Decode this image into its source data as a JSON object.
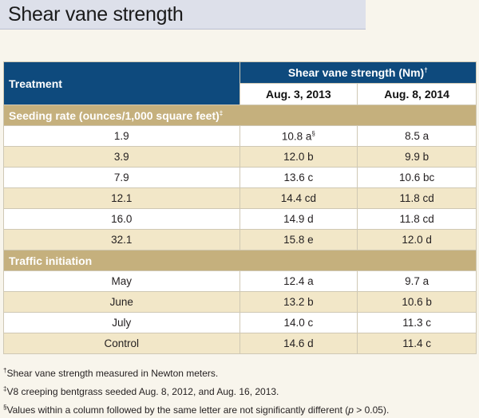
{
  "title": "Shear vane strength",
  "table": {
    "treatment_header": "Treatment",
    "group_header": "Shear vane strength (Nm)",
    "group_header_mark": "†",
    "columns": [
      "Aug. 3, 2013",
      "Aug. 8, 2014"
    ],
    "sections": [
      {
        "label": "Seeding rate (ounces/1,000 square feet)",
        "label_mark": "‡",
        "rows": [
          {
            "treatment": "1.9",
            "v2013": "10.8 a",
            "v2013_mark": "§",
            "v2014": "8.5 a"
          },
          {
            "treatment": "3.9",
            "v2013": "12.0 b",
            "v2014": "9.9 b"
          },
          {
            "treatment": "7.9",
            "v2013": "13.6 c",
            "v2014": "10.6 bc"
          },
          {
            "treatment": "12.1",
            "v2013": "14.4 cd",
            "v2014": "11.8 cd"
          },
          {
            "treatment": "16.0",
            "v2013": "14.9 d",
            "v2014": "11.8 cd"
          },
          {
            "treatment": "32.1",
            "v2013": "15.8 e",
            "v2014": "12.0 d"
          }
        ]
      },
      {
        "label": "Traffic initiation",
        "rows": [
          {
            "treatment": "May",
            "v2013": "12.4 a",
            "v2014": "9.7 a"
          },
          {
            "treatment": "June",
            "v2013": "13.2 b",
            "v2014": "10.6 b"
          },
          {
            "treatment": "July",
            "v2013": "14.0 c",
            "v2014": "11.3 c"
          },
          {
            "treatment": "Control",
            "v2013": "14.6 d",
            "v2014": "11.4 c"
          }
        ]
      }
    ]
  },
  "footnotes": {
    "n1_mark": "†",
    "n1": "Shear vane strength measured in Newton meters.",
    "n2_mark": "‡",
    "n2": "V8 creeping bentgrass seeded Aug. 8, 2012, and Aug. 16, 2013.",
    "n3_mark": "§",
    "n3_pre": "Values within a column followed by the same letter are not significantly different (",
    "n3_p": "p",
    "n3_post": " > 0.05)."
  },
  "colors": {
    "header_blue": "#0e4a7d",
    "section_tan": "#c5b07d",
    "row_stripe": "#f2e7c8",
    "title_bar": "#dde0ea"
  }
}
